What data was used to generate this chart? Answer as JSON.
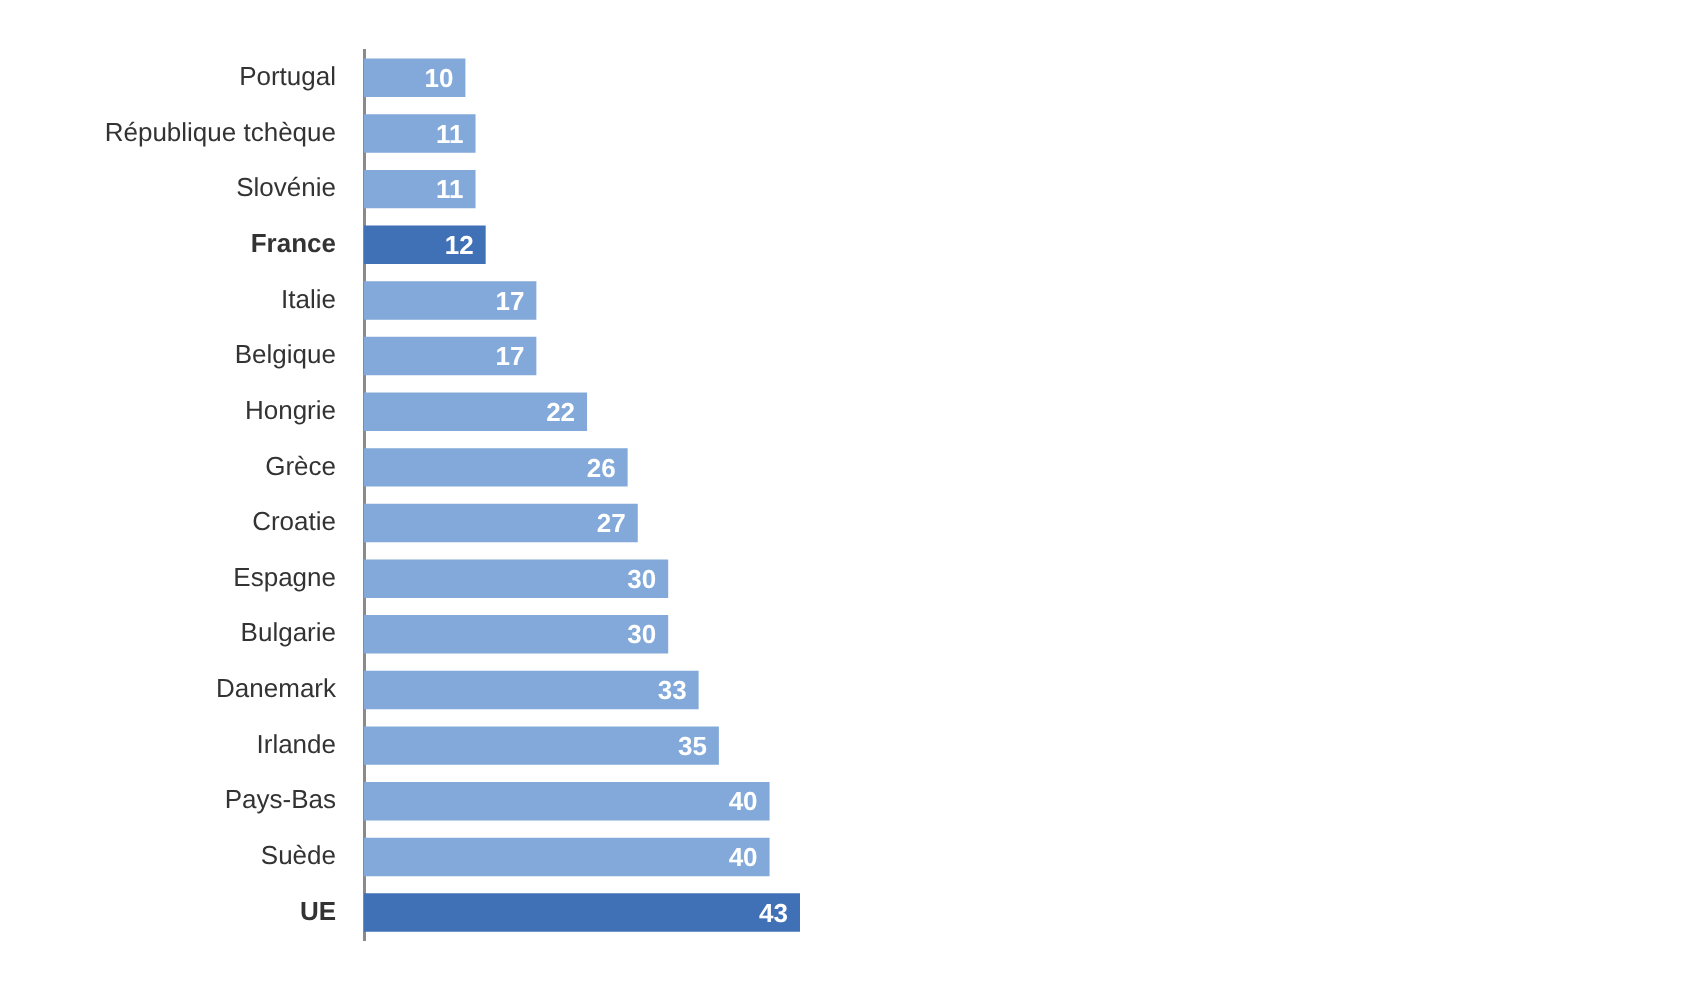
{
  "chart_data": {
    "type": "bar",
    "orientation": "horizontal",
    "categories": [
      "Portugal",
      "République tchèque",
      "Slovénie",
      "France",
      "Italie",
      "Belgique",
      "Hongrie",
      "Grèce",
      "Croatie",
      "Espagne",
      "Bulgarie",
      "Danemark",
      "Irlande",
      "Pays-Bas",
      "Suède",
      "UE"
    ],
    "values": [
      10,
      11,
      11,
      12,
      17,
      17,
      22,
      26,
      27,
      30,
      30,
      33,
      35,
      40,
      40,
      43
    ],
    "colors": [
      "#82a9d9",
      "#82a9d9",
      "#82a9d9",
      "#4070b6",
      "#82a9d9",
      "#82a9d9",
      "#82a9d9",
      "#82a9d9",
      "#82a9d9",
      "#82a9d9",
      "#82a9d9",
      "#82a9d9",
      "#82a9d9",
      "#82a9d9",
      "#82a9d9",
      "#4070b6"
    ],
    "data_labels": true
  }
}
